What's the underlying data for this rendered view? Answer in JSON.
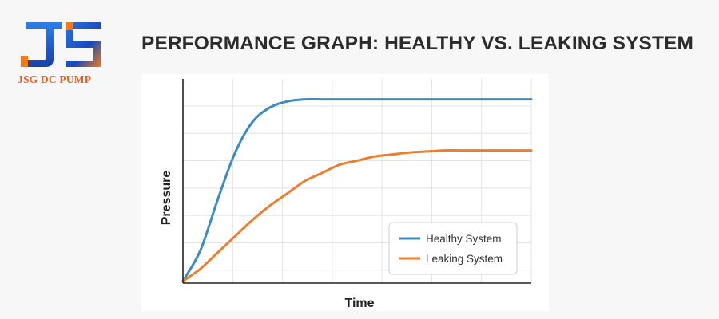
{
  "brand": {
    "name": "JSG DC PUMP",
    "logo_letters": "JS"
  },
  "colors": {
    "logo_blue": "#1a56c9",
    "logo_orange": "#f07a1a",
    "healthy": "#3b8bc4",
    "leaking": "#ee7d2e",
    "grid": "#e3e3e3",
    "axis": "#222222",
    "title": "#2b2b2b"
  },
  "page": {
    "title": "PERFORMANCE GRAPH: HEALTHY VS. LEAKING SYSTEM"
  },
  "chart_data": {
    "type": "line",
    "title": "PERFORMANCE GRAPH: HEALTHY VS. LEAKING SYSTEM",
    "xlabel": "Time",
    "ylabel": "Pressure",
    "xlim": [
      0,
      10
    ],
    "ylim": [
      0,
      10
    ],
    "grid": true,
    "ticks_labeled": false,
    "legend_position": "bottom-right",
    "x": [
      0,
      0.5,
      1,
      1.5,
      2,
      2.5,
      3,
      3.5,
      4,
      4.5,
      5,
      5.5,
      6,
      6.5,
      7,
      7.5,
      8,
      8.5,
      9,
      9.5,
      10
    ],
    "series": [
      {
        "name": "Healthy System",
        "values": [
          0.1,
          1.6,
          4.1,
          6.4,
          7.9,
          8.6,
          8.9,
          9.0,
          9.0,
          9.0,
          9.0,
          9.0,
          9.0,
          9.0,
          9.0,
          9.0,
          9.0,
          9.0,
          9.0,
          9.0,
          9.0
        ]
      },
      {
        "name": "Leaking System",
        "values": [
          0.1,
          0.7,
          1.5,
          2.3,
          3.1,
          3.8,
          4.4,
          5.0,
          5.4,
          5.8,
          6.0,
          6.2,
          6.3,
          6.4,
          6.45,
          6.5,
          6.5,
          6.5,
          6.5,
          6.5,
          6.5
        ]
      }
    ]
  }
}
